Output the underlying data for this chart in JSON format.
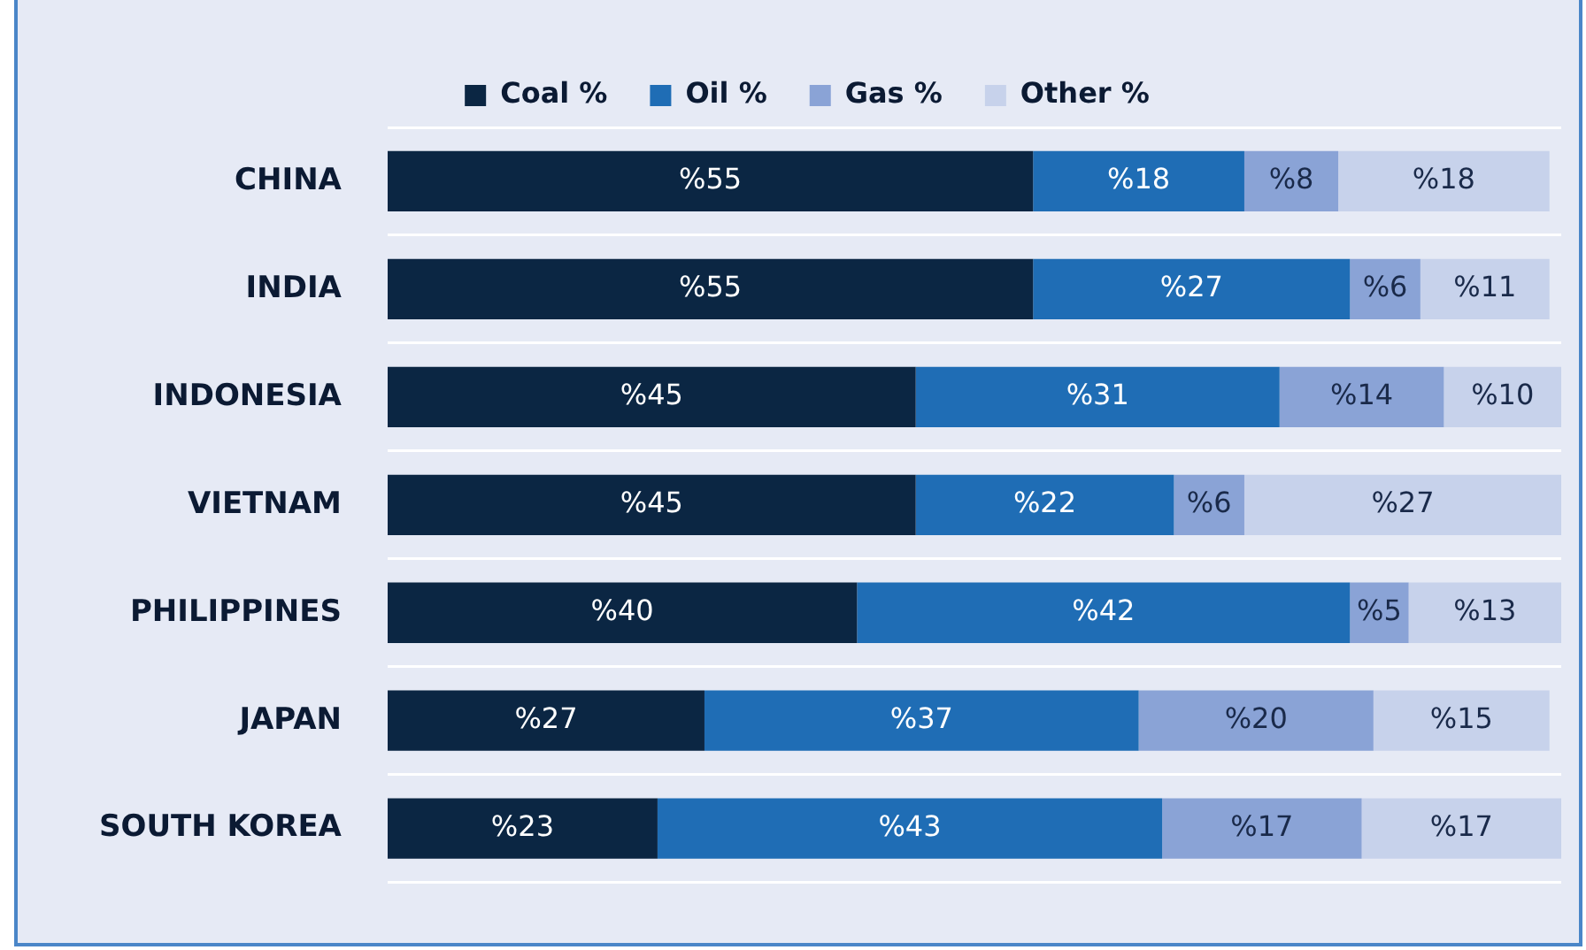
{
  "chart_data": {
    "type": "bar",
    "orientation": "horizontal",
    "stacked": true,
    "categories": [
      "CHINA",
      "INDIA",
      "INDONESIA",
      "VIETNAM",
      "PHILIPPINES",
      "JAPAN",
      "SOUTH KOREA"
    ],
    "series": [
      {
        "name": "Coal %",
        "color": "#0b2643",
        "values": [
          55,
          55,
          45,
          45,
          40,
          27,
          23
        ],
        "value_labels": [
          "%55",
          "%55",
          "%45",
          "%45",
          "%40",
          "%27",
          "%23"
        ]
      },
      {
        "name": "Oil %",
        "color": "#1f6db5",
        "values": [
          18,
          27,
          31,
          22,
          42,
          37,
          43
        ],
        "value_labels": [
          "%18",
          "%27",
          "%31",
          "%22",
          "%42",
          "%37",
          "%43"
        ]
      },
      {
        "name": "Gas %",
        "color": "#8aa3d6",
        "values": [
          8,
          6,
          14,
          6,
          5,
          20,
          17
        ],
        "value_labels": [
          "%8",
          "%6",
          "%14",
          "%6",
          "%5",
          "%20",
          "%17"
        ]
      },
      {
        "name": "Other %",
        "color": "#c7d2eb",
        "values": [
          18,
          11,
          10,
          27,
          13,
          15,
          17
        ],
        "value_labels": [
          "%18",
          "%11",
          "%10",
          "%27",
          "%13",
          "%15",
          "%17"
        ]
      }
    ],
    "xlim": [
      0,
      100
    ],
    "tick_labels": "y",
    "grid": "y",
    "legend": "top"
  }
}
